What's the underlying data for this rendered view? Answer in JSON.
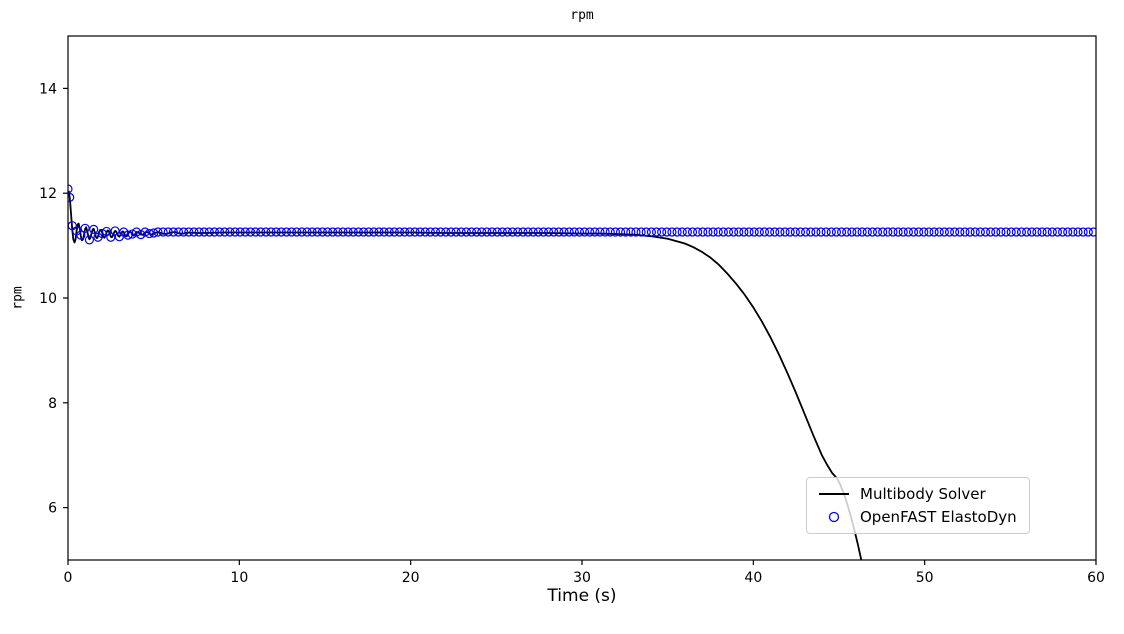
{
  "chart_data": {
    "type": "line",
    "title": "rpm",
    "xlabel": "Time (s)",
    "ylabel": "rpm",
    "xlim": [
      0,
      60
    ],
    "ylim": [
      5,
      15
    ],
    "x_ticks": [
      0,
      10,
      20,
      30,
      40,
      50,
      60
    ],
    "y_ticks": [
      6,
      8,
      10,
      12,
      14
    ],
    "grid": false,
    "legend_position": "lower right",
    "series": [
      {
        "name": "Multibody Solver",
        "style": "line",
        "color": "#000000",
        "points": [
          [
            0,
            11.98
          ],
          [
            0.06,
            12.03
          ],
          [
            0.12,
            11.85
          ],
          [
            0.19,
            11.55
          ],
          [
            0.25,
            11.3
          ],
          [
            0.31,
            11.12
          ],
          [
            0.38,
            11.06
          ],
          [
            0.44,
            11.12
          ],
          [
            0.5,
            11.28
          ],
          [
            0.56,
            11.4
          ],
          [
            0.62,
            11.42
          ],
          [
            0.69,
            11.32
          ],
          [
            0.75,
            11.18
          ],
          [
            0.81,
            11.1
          ],
          [
            0.88,
            11.12
          ],
          [
            0.94,
            11.22
          ],
          [
            1,
            11.32
          ],
          [
            1.06,
            11.35
          ],
          [
            1.12,
            11.28
          ],
          [
            1.19,
            11.17
          ],
          [
            1.25,
            11.12
          ],
          [
            1.31,
            11.15
          ],
          [
            1.38,
            11.24
          ],
          [
            1.44,
            11.31
          ],
          [
            1.5,
            11.32
          ],
          [
            1.56,
            11.26
          ],
          [
            1.62,
            11.17
          ],
          [
            1.69,
            11.14
          ],
          [
            1.75,
            11.17
          ],
          [
            1.81,
            11.25
          ],
          [
            1.88,
            11.3
          ],
          [
            1.94,
            11.3
          ],
          [
            2,
            11.24
          ],
          [
            2.06,
            11.17
          ],
          [
            2.12,
            11.15
          ],
          [
            2.19,
            11.18
          ],
          [
            2.25,
            11.25
          ],
          [
            2.31,
            11.29
          ],
          [
            2.38,
            11.28
          ],
          [
            2.44,
            11.22
          ],
          [
            2.5,
            11.17
          ],
          [
            2.56,
            11.16
          ],
          [
            2.62,
            11.19
          ],
          [
            2.69,
            11.25
          ],
          [
            2.75,
            11.28
          ],
          [
            2.81,
            11.27
          ],
          [
            2.88,
            11.22
          ],
          [
            2.94,
            11.18
          ],
          [
            3,
            11.17
          ],
          [
            3.06,
            11.2
          ],
          [
            3.12,
            11.25
          ],
          [
            3.19,
            11.27
          ],
          [
            3.25,
            11.26
          ],
          [
            3.31,
            11.21
          ],
          [
            3.38,
            11.18
          ],
          [
            3.44,
            11.18
          ],
          [
            3.5,
            11.21
          ],
          [
            3.56,
            11.25
          ],
          [
            3.62,
            11.27
          ],
          [
            3.69,
            11.25
          ],
          [
            3.75,
            11.21
          ],
          [
            3.81,
            11.19
          ],
          [
            3.88,
            11.2
          ],
          [
            3.94,
            11.23
          ],
          [
            4,
            11.26
          ],
          [
            4.12,
            11.25
          ],
          [
            4.25,
            11.21
          ],
          [
            4.38,
            11.21
          ],
          [
            4.5,
            11.25
          ],
          [
            4.62,
            11.26
          ],
          [
            4.75,
            11.23
          ],
          [
            4.88,
            11.21
          ],
          [
            5,
            11.23
          ],
          [
            5.25,
            11.26
          ],
          [
            5.5,
            11.23
          ],
          [
            5.75,
            11.22
          ],
          [
            6,
            11.25
          ],
          [
            6.25,
            11.26
          ],
          [
            6.5,
            11.23
          ],
          [
            6.75,
            11.23
          ],
          [
            7,
            11.25
          ],
          [
            7.5,
            11.24
          ],
          [
            8,
            11.24
          ],
          [
            9,
            11.25
          ],
          [
            10,
            11.25
          ],
          [
            12,
            11.25
          ],
          [
            14,
            11.25
          ],
          [
            16,
            11.25
          ],
          [
            18,
            11.25
          ],
          [
            20,
            11.25
          ],
          [
            22,
            11.24
          ],
          [
            24,
            11.24
          ],
          [
            26,
            11.24
          ],
          [
            28,
            11.24
          ],
          [
            30,
            11.23
          ],
          [
            31,
            11.23
          ],
          [
            32,
            11.22
          ],
          [
            33,
            11.21
          ],
          [
            34,
            11.18
          ],
          [
            35,
            11.13
          ],
          [
            36,
            11.04
          ],
          [
            36.5,
            10.97
          ],
          [
            37,
            10.88
          ],
          [
            37.5,
            10.77
          ],
          [
            38,
            10.63
          ],
          [
            38.5,
            10.46
          ],
          [
            39,
            10.27
          ],
          [
            39.5,
            10.06
          ],
          [
            40,
            9.82
          ],
          [
            40.5,
            9.55
          ],
          [
            41,
            9.25
          ],
          [
            41.5,
            8.92
          ],
          [
            42,
            8.56
          ],
          [
            42.5,
            8.18
          ],
          [
            43,
            7.78
          ],
          [
            43.5,
            7.38
          ],
          [
            44,
            7.0
          ],
          [
            44.3,
            6.82
          ],
          [
            44.6,
            6.66
          ],
          [
            44.9,
            6.55
          ],
          [
            45.1,
            6.42
          ],
          [
            45.3,
            6.25
          ],
          [
            45.5,
            6.05
          ],
          [
            45.7,
            5.82
          ],
          [
            45.9,
            5.57
          ],
          [
            46.1,
            5.3
          ],
          [
            46.3,
            5.0
          ]
        ]
      },
      {
        "name": "OpenFAST ElastoDyn",
        "style": "scatter",
        "marker": "open-circle",
        "color": "#0000ff",
        "points": [
          [
            0,
            12.08
          ],
          [
            0.1,
            11.92
          ],
          [
            0.25,
            11.38
          ],
          [
            0.5,
            11.28
          ],
          [
            0.75,
            11.2
          ],
          [
            1,
            11.33
          ],
          [
            1.25,
            11.11
          ],
          [
            1.5,
            11.31
          ],
          [
            1.75,
            11.16
          ],
          [
            2,
            11.23
          ],
          [
            2.25,
            11.27
          ],
          [
            2.5,
            11.16
          ],
          [
            2.75,
            11.28
          ],
          [
            3,
            11.17
          ],
          [
            3.25,
            11.26
          ],
          [
            3.5,
            11.2
          ],
          [
            3.75,
            11.22
          ],
          [
            4,
            11.26
          ],
          [
            4.25,
            11.21
          ],
          [
            4.5,
            11.26
          ],
          [
            4.75,
            11.23
          ],
          [
            5,
            11.24
          ]
        ],
        "constant_tail": {
          "t_start": 5.25,
          "t_end": 60,
          "step": 0.3,
          "value": 11.26
        }
      }
    ]
  },
  "legend": {
    "items": [
      {
        "label": "Multibody Solver"
      },
      {
        "label": "OpenFAST ElastoDyn"
      }
    ]
  },
  "colors": {
    "spine": "#000000",
    "tick_label": "#000000",
    "legend_border": "#cccccc"
  }
}
